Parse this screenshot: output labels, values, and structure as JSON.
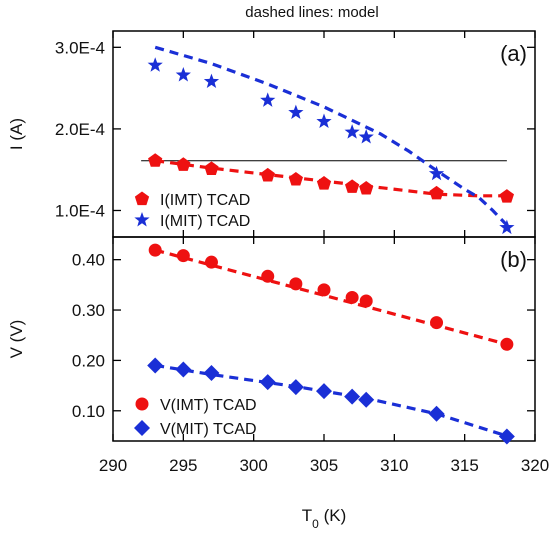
{
  "chart_data": {
    "type": "scatter",
    "note": "dashed lines: model",
    "xlabel": {
      "main": "T",
      "sub": "0",
      "unit": " (K)"
    },
    "x_ticks": [
      290,
      295,
      300,
      305,
      310,
      315,
      320
    ],
    "xlim": [
      290,
      320
    ],
    "panels": [
      {
        "label": "(a)",
        "ylabel": "I (A)",
        "ylim": [
          6.75e-05,
          0.00032
        ],
        "y_ticks": [
          {
            "value": 0.0001,
            "label": "1.0E-4"
          },
          {
            "value": 0.0002,
            "label": "2.0E-4"
          },
          {
            "value": 0.0003,
            "label": "3.0E-4"
          }
        ],
        "reference_line": {
          "y": 0.000161,
          "x_range": [
            292,
            318
          ]
        },
        "series": [
          {
            "name": "I(IMT) TCAD",
            "marker": "pentagon",
            "color": "#ee1111",
            "x": [
              293,
              295,
              297,
              301,
              303,
              305,
              307,
              308,
              313,
              318
            ],
            "y": [
              0.000161,
              0.000156,
              0.000151,
              0.000143,
              0.000138,
              0.000133,
              0.000129,
              0.000127,
              0.000121,
              0.000117
            ]
          },
          {
            "name": "I(MIT) TCAD",
            "marker": "star",
            "color": "#1a2fd6",
            "x": [
              293,
              295,
              297,
              301,
              303,
              305,
              307,
              308,
              313,
              318
            ],
            "y": [
              0.000278,
              0.000266,
              0.000258,
              0.000235,
              0.00022,
              0.000209,
              0.000196,
              0.00019,
              0.000145,
              7.9e-05
            ]
          }
        ],
        "models": [
          {
            "color": "#ee1111",
            "x": [
              293,
              297,
              301,
              305,
              309,
              313,
              316,
              318
            ],
            "y": [
              0.000161,
              0.000152,
              0.000144,
              0.000136,
              0.000128,
              0.00012,
              0.000118,
              0.000118
            ]
          },
          {
            "color": "#1a2fd6",
            "x": [
              293,
              297,
              301,
              305,
              309,
              311,
              313,
              315,
              316,
              317,
              318
            ],
            "y": [
              0.0003,
              0.00028,
              0.000255,
              0.000227,
              0.000194,
              0.000173,
              0.000149,
              0.000126,
              0.000116,
              0.0001,
              8.2e-05
            ]
          }
        ]
      },
      {
        "label": "(b)",
        "ylabel": "V (V)",
        "ylim": [
          0.04,
          0.445
        ],
        "y_ticks": [
          {
            "value": 0.1,
            "label": "0.10"
          },
          {
            "value": 0.2,
            "label": "0.20"
          },
          {
            "value": 0.3,
            "label": "0.30"
          },
          {
            "value": 0.4,
            "label": "0.40"
          }
        ],
        "series": [
          {
            "name": "V(IMT) TCAD",
            "marker": "circle",
            "color": "#ee1111",
            "x": [
              293,
              295,
              297,
              301,
              303,
              305,
              307,
              308,
              313,
              318
            ],
            "y": [
              0.419,
              0.408,
              0.395,
              0.367,
              0.352,
              0.34,
              0.325,
              0.318,
              0.275,
              0.232
            ]
          },
          {
            "name": "V(MIT) TCAD",
            "marker": "diamond",
            "color": "#1a2fd6",
            "x": [
              293,
              295,
              297,
              301,
              303,
              305,
              307,
              308,
              313,
              318
            ],
            "y": [
              0.19,
              0.182,
              0.175,
              0.157,
              0.147,
              0.139,
              0.128,
              0.122,
              0.094,
              0.049
            ]
          }
        ],
        "models": [
          {
            "color": "#ee1111",
            "x": [
              293,
              318
            ],
            "y": [
              0.419,
              0.232
            ]
          },
          {
            "color": "#1a2fd6",
            "x": [
              293,
              297,
              303,
              308,
              313,
              318
            ],
            "y": [
              0.19,
              0.172,
              0.148,
              0.125,
              0.094,
              0.05
            ]
          }
        ]
      }
    ]
  }
}
